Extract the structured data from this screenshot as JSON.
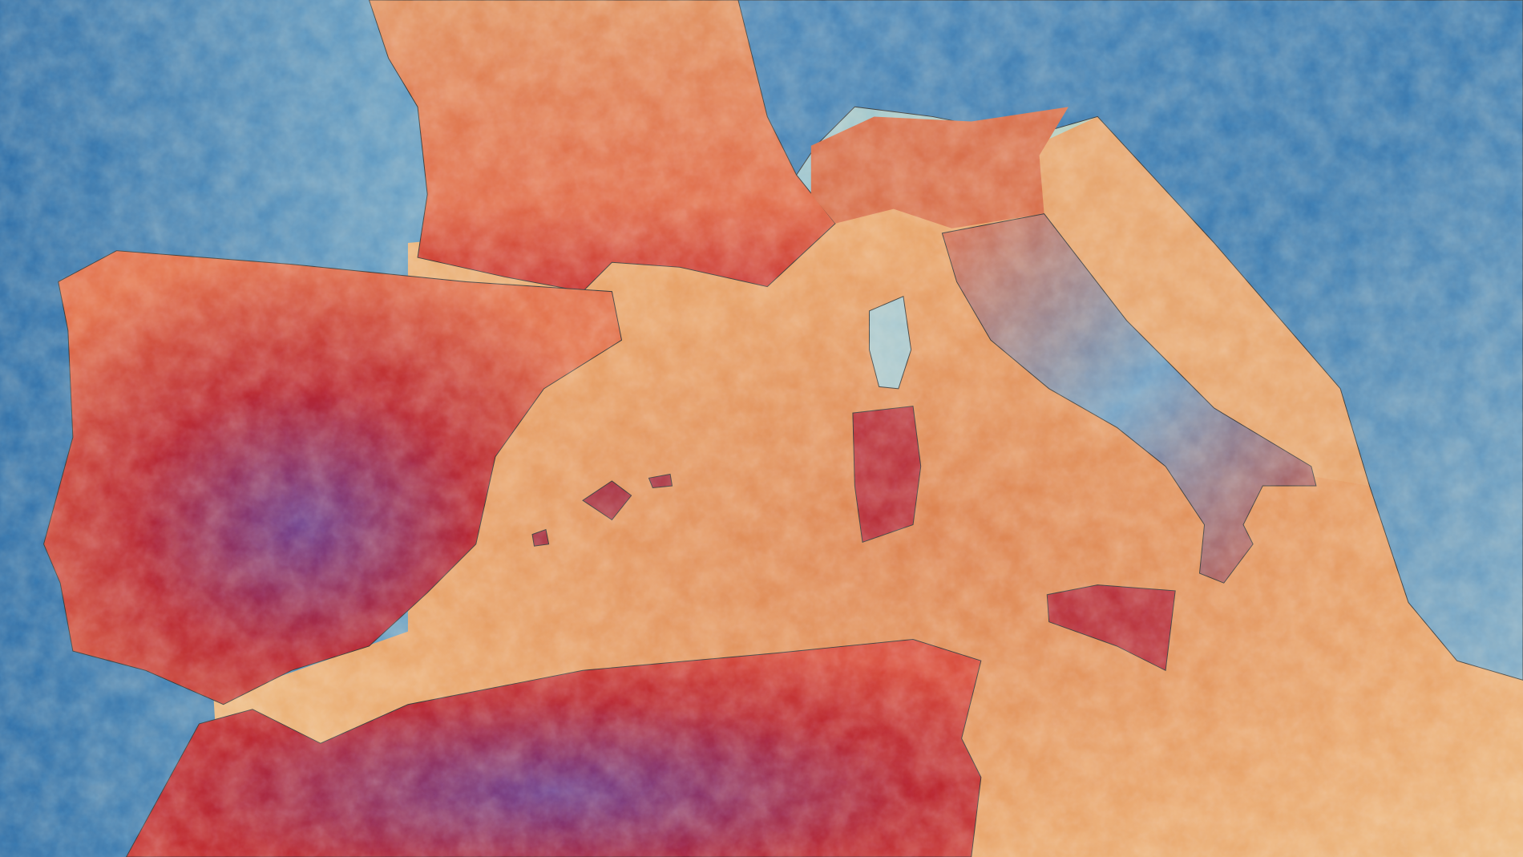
{
  "map": {
    "palette": {
      "atlantic_deep": "#2f6fa8",
      "atlantic_mid": "#8fbfd6",
      "atlantic_coast": "#e6e2a8",
      "sea_warm": "#e49a62",
      "sea_light": "#eec28a",
      "land_hot": "#c4242a",
      "land_hottest": "#6a3a8a",
      "land_warm": "#e2704a",
      "land_cool": "#3c7bb0",
      "land_mild": "#a9c8cf",
      "border": "#333333"
    }
  }
}
